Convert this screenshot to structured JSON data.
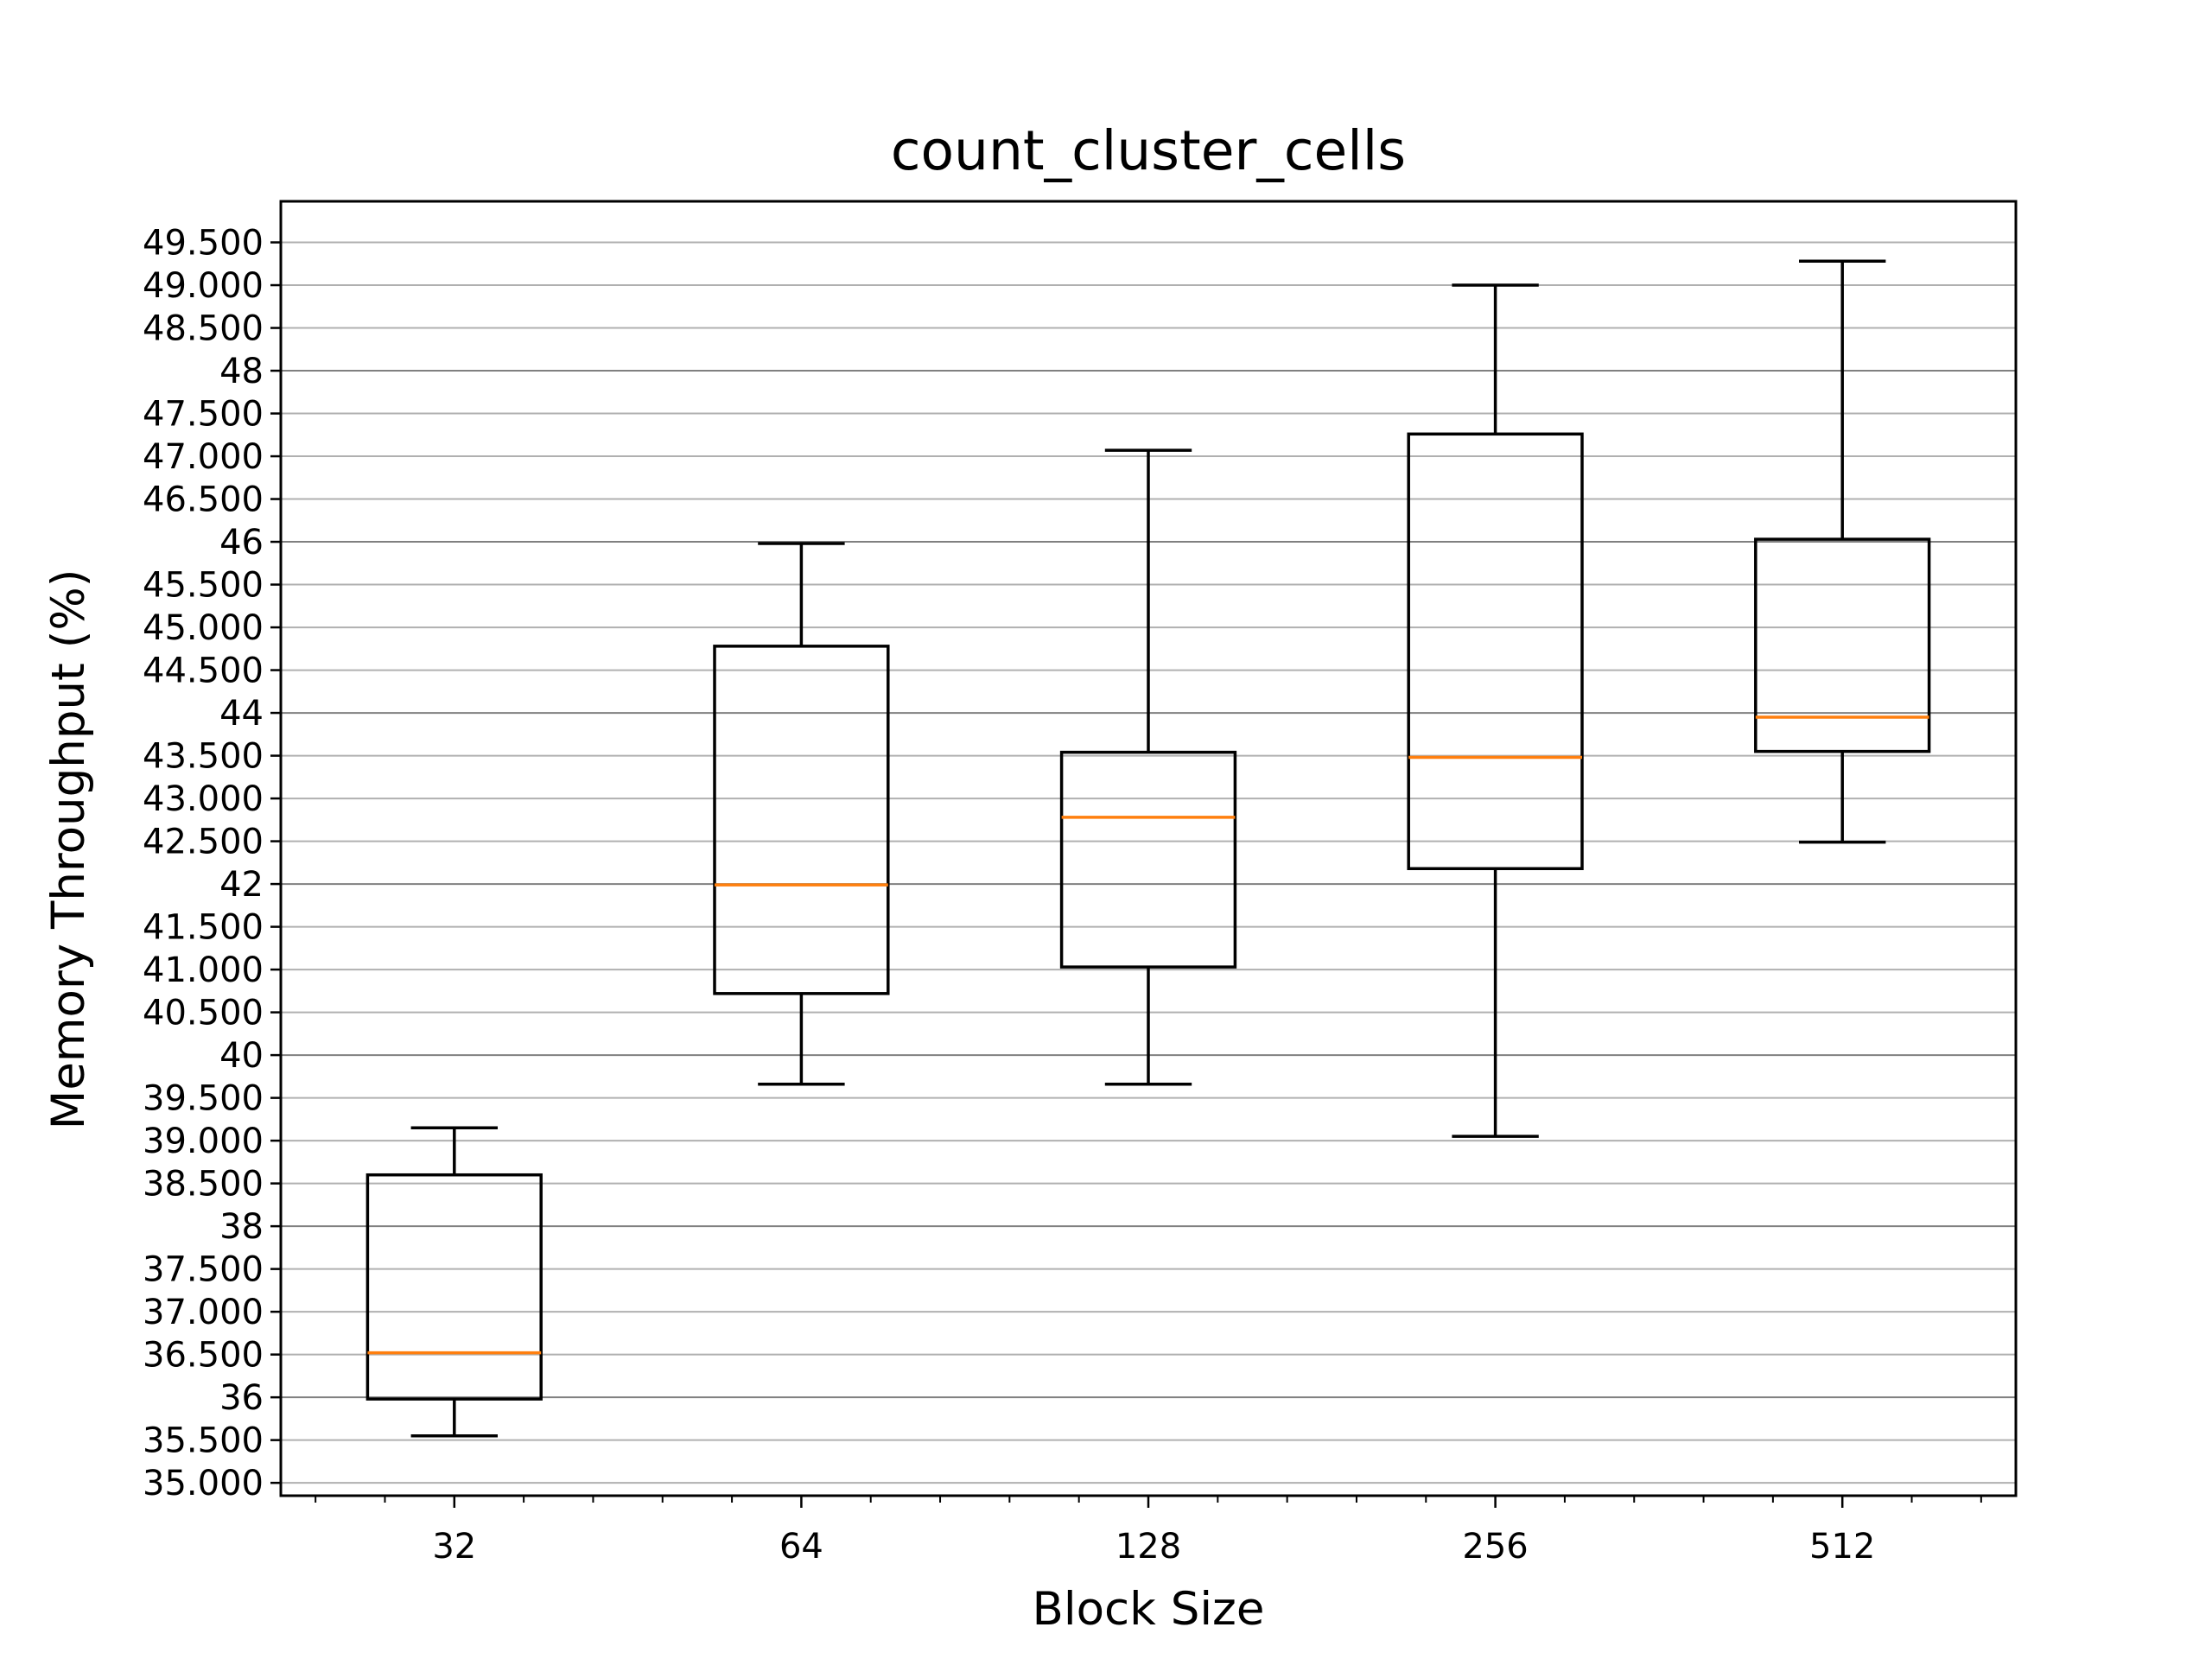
{
  "chart_data": {
    "type": "box",
    "title": "count_cluster_cells",
    "xlabel": "Block Size",
    "ylabel": "Memory Throughput (%)",
    "categories": [
      "32",
      "64",
      "128",
      "256",
      "512"
    ],
    "ylim": [
      34.85,
      49.98
    ],
    "yticks": [
      {
        "value": 35.0,
        "label": "35.000"
      },
      {
        "value": 35.5,
        "label": "35.500"
      },
      {
        "value": 36.0,
        "label": "36"
      },
      {
        "value": 36.5,
        "label": "36.500"
      },
      {
        "value": 37.0,
        "label": "37.000"
      },
      {
        "value": 37.5,
        "label": "37.500"
      },
      {
        "value": 38.0,
        "label": "38"
      },
      {
        "value": 38.5,
        "label": "38.500"
      },
      {
        "value": 39.0,
        "label": "39.000"
      },
      {
        "value": 39.5,
        "label": "39.500"
      },
      {
        "value": 40.0,
        "label": "40"
      },
      {
        "value": 40.5,
        "label": "40.500"
      },
      {
        "value": 41.0,
        "label": "41.000"
      },
      {
        "value": 41.5,
        "label": "41.500"
      },
      {
        "value": 42.0,
        "label": "42"
      },
      {
        "value": 42.5,
        "label": "42.500"
      },
      {
        "value": 43.0,
        "label": "43.000"
      },
      {
        "value": 43.5,
        "label": "43.500"
      },
      {
        "value": 44.0,
        "label": "44"
      },
      {
        "value": 44.5,
        "label": "44.500"
      },
      {
        "value": 45.0,
        "label": "45.000"
      },
      {
        "value": 45.5,
        "label": "45.500"
      },
      {
        "value": 46.0,
        "label": "46"
      },
      {
        "value": 46.5,
        "label": "46.500"
      },
      {
        "value": 47.0,
        "label": "47.000"
      },
      {
        "value": 47.5,
        "label": "47.500"
      },
      {
        "value": 48.0,
        "label": "48"
      },
      {
        "value": 48.5,
        "label": "48.500"
      },
      {
        "value": 49.0,
        "label": "49.000"
      },
      {
        "value": 49.5,
        "label": "49.500"
      }
    ],
    "boxes": [
      {
        "category": "32",
        "whisker_low": 35.55,
        "q1": 35.98,
        "median": 36.52,
        "q3": 38.6,
        "whisker_high": 39.15
      },
      {
        "category": "64",
        "whisker_low": 39.66,
        "q1": 40.72,
        "median": 41.99,
        "q3": 44.78,
        "whisker_high": 45.98
      },
      {
        "category": "128",
        "whisker_low": 39.66,
        "q1": 41.03,
        "median": 42.78,
        "q3": 43.54,
        "whisker_high": 47.07
      },
      {
        "category": "256",
        "whisker_low": 39.05,
        "q1": 42.18,
        "median": 43.48,
        "q3": 47.26,
        "whisker_high": 49.0
      },
      {
        "category": "512",
        "whisker_low": 42.49,
        "q1": 43.55,
        "median": 43.95,
        "q3": 46.03,
        "whisker_high": 49.28
      }
    ],
    "grid": true,
    "colors": {
      "box": "#000000",
      "median": "#ff7f0e",
      "grid": "#b0b0b0",
      "major_grid": "#808080"
    }
  }
}
